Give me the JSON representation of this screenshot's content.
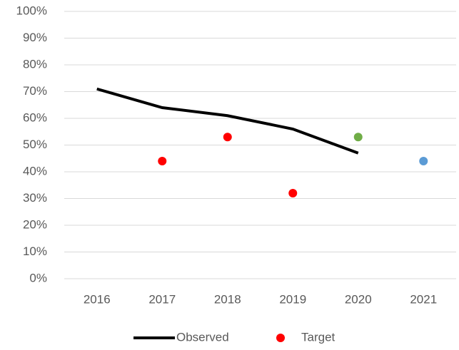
{
  "chart_data": {
    "type": "line",
    "categories": [
      "2016",
      "2017",
      "2018",
      "2019",
      "2020",
      "2021"
    ],
    "series": [
      {
        "name": "Observed",
        "color": "#000000",
        "kind": "line",
        "values": [
          71,
          64,
          61,
          56,
          47,
          null
        ]
      },
      {
        "name": "Target",
        "color": "#ff0000",
        "kind": "points",
        "values": [
          null,
          44,
          53,
          32,
          53,
          44
        ],
        "point_colors": [
          null,
          "#ff0000",
          "#ff0000",
          "#ff0000",
          "#70ad47",
          "#5b9bd5"
        ]
      }
    ],
    "ylim": [
      0,
      100
    ],
    "yticks": [
      {
        "value": 0,
        "label": "0%"
      },
      {
        "value": 10,
        "label": "10%"
      },
      {
        "value": 20,
        "label": "20%"
      },
      {
        "value": 30,
        "label": "30%"
      },
      {
        "value": 40,
        "label": "40%"
      },
      {
        "value": 50,
        "label": "50%"
      },
      {
        "value": 60,
        "label": "60%"
      },
      {
        "value": 70,
        "label": "70%"
      },
      {
        "value": 80,
        "label": "80%"
      },
      {
        "value": 90,
        "label": "90%"
      },
      {
        "value": 100,
        "label": "100%"
      }
    ],
    "grid": true,
    "legend": "bottom"
  }
}
